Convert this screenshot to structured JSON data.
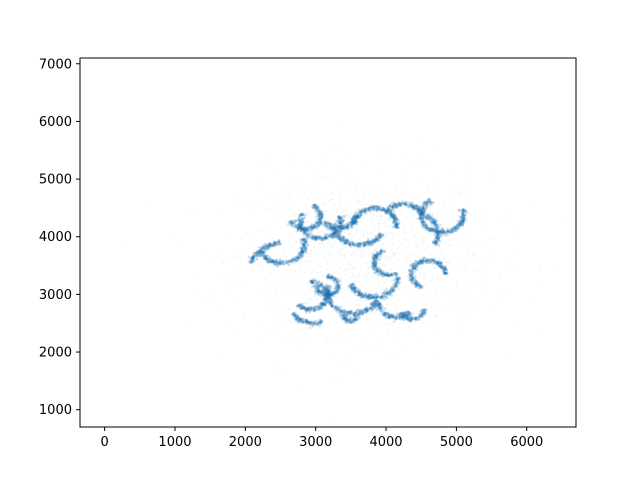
{
  "chart_data": {
    "type": "scatter",
    "title": "",
    "xlabel": "",
    "ylabel": "",
    "xlim": [
      -350,
      6700
    ],
    "ylim": [
      700,
      7100
    ],
    "xticks": [
      0,
      1000,
      2000,
      3000,
      4000,
      5000,
      6000
    ],
    "yticks": [
      1000,
      2000,
      3000,
      4000,
      5000,
      6000,
      7000
    ],
    "xtick_labels": [
      "0",
      "1000",
      "2000",
      "3000",
      "4000",
      "5000",
      "6000"
    ],
    "ytick_labels": [
      "1000",
      "2000",
      "3000",
      "4000",
      "5000",
      "6000",
      "7000"
    ],
    "grid": false,
    "legend": "none",
    "marker_color": "#1f77b4",
    "background_cloud": {
      "center": [
        3700,
        3700
      ],
      "spread": [
        900,
        700
      ],
      "count": 1400
    },
    "series": [
      {
        "arcs": [
          {
            "center": [
              2520,
              3860
            ],
            "radius": 320,
            "start_deg": 200,
            "end_deg": 20
          },
          {
            "center": [
              2600,
              3350
            ],
            "radius": 560,
            "start_deg": 100,
            "end_deg": 160
          },
          {
            "center": [
              2850,
              4350
            ],
            "radius": 220,
            "start_deg": 200,
            "end_deg": 60
          },
          {
            "center": [
              3070,
              4260
            ],
            "radius": 290,
            "start_deg": 150,
            "end_deg": 20
          },
          {
            "center": [
              3330,
              4370
            ],
            "radius": 230,
            "start_deg": 210,
            "end_deg": 360
          },
          {
            "center": [
              3620,
              4230
            ],
            "radius": 370,
            "start_deg": 180,
            "end_deg": 330
          },
          {
            "center": [
              3850,
              4200
            ],
            "radius": 300,
            "start_deg": 350,
            "end_deg": 180
          },
          {
            "center": [
              4250,
              4270
            ],
            "radius": 300,
            "start_deg": 20,
            "end_deg": 150
          },
          {
            "center": [
              4380,
              4050
            ],
            "radius": 360,
            "start_deg": 330,
            "end_deg": 60
          },
          {
            "center": [
              4800,
              4380
            ],
            "radius": 300,
            "start_deg": 120,
            "end_deg": 20
          },
          {
            "center": [
              2920,
              2980
            ],
            "radius": 240,
            "start_deg": 220,
            "end_deg": 90
          },
          {
            "center": [
              3160,
              3150
            ],
            "radius": 160,
            "start_deg": 180,
            "end_deg": 90
          },
          {
            "center": [
              3530,
              3030
            ],
            "radius": 360,
            "start_deg": 160,
            "end_deg": 340
          },
          {
            "center": [
              3820,
              3300
            ],
            "radius": 350,
            "start_deg": 200,
            "end_deg": 360
          },
          {
            "center": [
              4050,
              3550
            ],
            "radius": 220,
            "start_deg": 110,
            "end_deg": 300
          },
          {
            "center": [
              4150,
              2850
            ],
            "radius": 250,
            "start_deg": 180,
            "end_deg": 320
          },
          {
            "center": [
              4370,
              2740
            ],
            "radius": 170,
            "start_deg": 200,
            "end_deg": 360
          },
          {
            "center": [
              4600,
              3350
            ],
            "radius": 240,
            "start_deg": 0,
            "end_deg": 250
          },
          {
            "center": [
              3500,
              2650
            ],
            "radius": 110,
            "start_deg": 180,
            "end_deg": 360
          },
          {
            "center": [
              2980,
              2850
            ],
            "radius": 350,
            "start_deg": 210,
            "end_deg": 290
          }
        ]
      }
    ]
  }
}
